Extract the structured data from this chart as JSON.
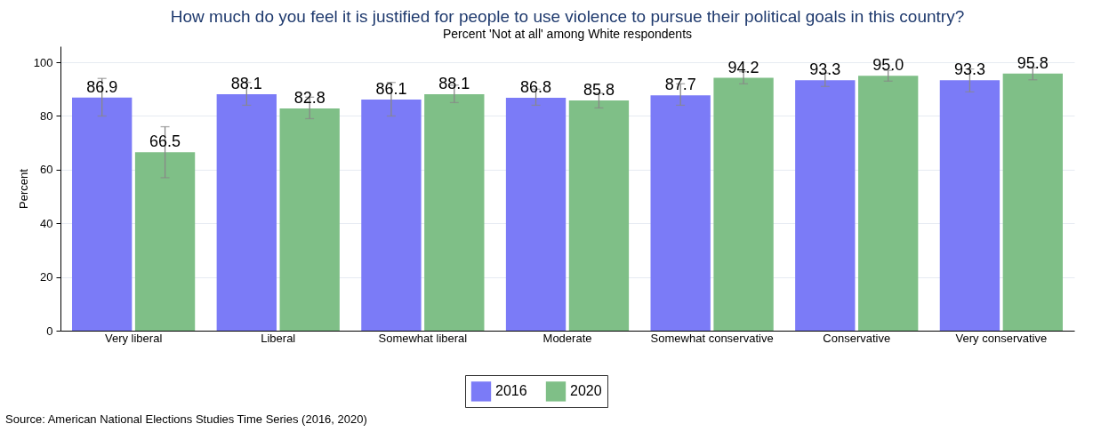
{
  "chart_data": {
    "type": "bar",
    "title": "How much do you feel it is justified for people to use violence to pursue their political goals in this country?",
    "subtitle": "Percent 'Not at all' among White respondents",
    "ylabel": "Percent",
    "categories": [
      "Very liberal",
      "Liberal",
      "Somewhat liberal",
      "Moderate",
      "Somewhat conservative",
      "Conservative",
      "Very conservative"
    ],
    "series": [
      {
        "name": "2016",
        "color": "#7b7bf7",
        "values": [
          86.9,
          88.1,
          86.1,
          86.8,
          87.7,
          93.3,
          93.3
        ],
        "value_labels": [
          "86.9",
          "88.1",
          "86.1",
          "86.8",
          "87.7",
          "93.3",
          "93.3"
        ],
        "errors": [
          [
            80,
            94
          ],
          [
            84,
            92.5
          ],
          [
            80,
            92.5
          ],
          [
            84,
            90
          ],
          [
            84,
            92
          ],
          [
            91,
            96
          ],
          [
            89,
            97.5
          ]
        ]
      },
      {
        "name": "2020",
        "color": "#7fbf87",
        "values": [
          66.5,
          82.8,
          88.1,
          85.8,
          94.2,
          95.0,
          95.8
        ],
        "value_labels": [
          "66.5",
          "82.8",
          "88.1",
          "85.8",
          "94.2",
          "95.0",
          "95.8"
        ],
        "errors": [
          [
            57,
            76
          ],
          [
            79,
            87
          ],
          [
            85,
            91.5
          ],
          [
            83,
            88.5
          ],
          [
            92,
            96.5
          ],
          [
            93,
            97
          ],
          [
            93.5,
            98
          ]
        ]
      }
    ],
    "ylim": [
      0,
      106
    ],
    "yticks": [
      0,
      20,
      40,
      60,
      80,
      100
    ],
    "grid": "y",
    "legend": "bottom",
    "annotations": [
      "Source: American National Elections Studies Time Series (2016, 2020)"
    ]
  }
}
